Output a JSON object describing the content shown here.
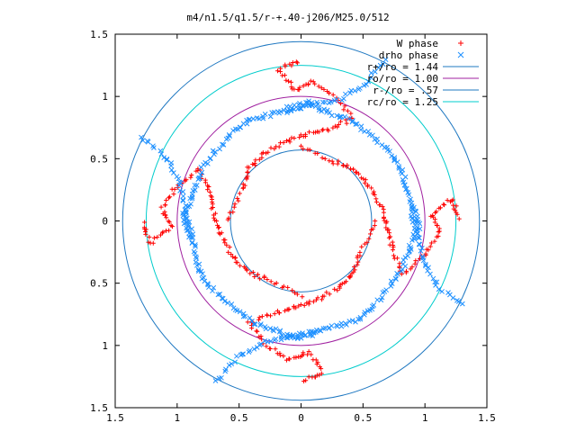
{
  "chart_data": {
    "type": "scatter",
    "title": "m4/n1.5/q1.5/r-+.40-j206/M25.0/512",
    "xlim": [
      -1.5,
      1.5
    ],
    "ylim": [
      -1.5,
      1.5
    ],
    "x_ticks": [
      -1.5,
      -1,
      -0.5,
      0,
      0.5,
      1,
      1.5
    ],
    "y_ticks": [
      1.5,
      1,
      0.5,
      0,
      -0.5,
      -1,
      -1.5
    ],
    "x_tick_labels": [
      "1.5",
      "1",
      "0.5",
      "0",
      "0.5",
      "1",
      "1.5"
    ],
    "y_tick_labels": [
      "1.5",
      "1",
      "0.5",
      "0",
      "0.5",
      "1",
      "1.5"
    ],
    "legend_position": "top-right",
    "grid": false,
    "series": [
      {
        "name": "W phase",
        "marker": "plus",
        "color": "#ff0000",
        "arms": 4,
        "r_range": [
          0.57,
          1.44
        ],
        "polyline": [
          [
            0,
            0.6
          ],
          [
            0.25,
            0.48
          ],
          [
            0.42,
            0.42
          ],
          [
            0.54,
            0.3
          ],
          [
            0.64,
            0.12
          ],
          [
            0.7,
            -0.05
          ],
          [
            0.74,
            -0.22
          ],
          [
            0.82,
            -0.42
          ],
          [
            1.0,
            -0.28
          ],
          [
            1.12,
            -0.1
          ],
          [
            1.05,
            0.05
          ],
          [
            1.22,
            0.18
          ],
          [
            1.28,
            0.0
          ]
        ]
      },
      {
        "name": "drho phase",
        "marker": "cross",
        "color": "#1e90ff",
        "arms": 4,
        "r_range": [
          0.57,
          1.44
        ],
        "polyline": [
          [
            -0.12,
            0.9
          ],
          [
            0.05,
            0.95
          ],
          [
            0.2,
            0.88
          ],
          [
            0.38,
            0.82
          ],
          [
            0.55,
            0.7
          ],
          [
            0.72,
            0.55
          ],
          [
            0.82,
            0.4
          ],
          [
            0.86,
            0.22
          ],
          [
            0.9,
            0.05
          ],
          [
            0.94,
            -0.1
          ],
          [
            0.98,
            -0.32
          ],
          [
            1.1,
            -0.52
          ],
          [
            1.32,
            -0.7
          ]
        ]
      }
    ],
    "circles": [
      {
        "name": "r+/ro = 1.44",
        "r": 1.44,
        "color": "#1f78c1"
      },
      {
        "name": "ro/ro = 1.00",
        "r": 1.0,
        "color": "#a020a0"
      },
      {
        "name": "r-/ro = .57",
        "r": 0.57,
        "color": "#1f78c1"
      },
      {
        "name": "rc/ro = 1.25",
        "r": 1.25,
        "color": "#00cccc"
      }
    ]
  }
}
